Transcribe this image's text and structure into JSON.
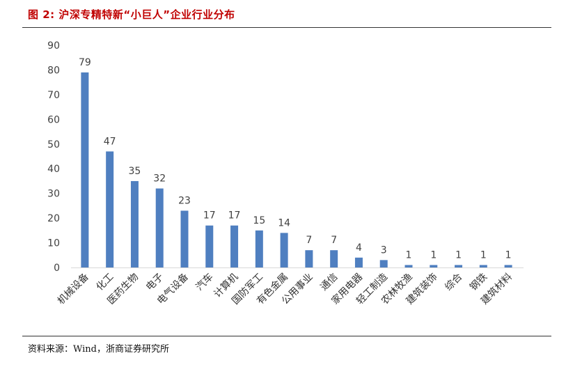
{
  "title": "图 2: 沪深专精特新“小巨人”企业行业分布",
  "source": "资料来源：Wind，浙商证券研究所",
  "colors": {
    "bar": "#4f7fc0",
    "title": "#c00000",
    "axis": "#d9d9d9",
    "text": "#404040"
  },
  "chart_data": {
    "type": "bar",
    "title": "",
    "xlabel": "",
    "ylabel": "",
    "ylim": [
      0,
      90
    ],
    "yticks": [
      0,
      10,
      20,
      30,
      40,
      50,
      60,
      70,
      80,
      90
    ],
    "grid": false,
    "categories": [
      "机械设备",
      "化工",
      "医药生物",
      "电子",
      "电气设备",
      "汽车",
      "计算机",
      "国防军工",
      "有色金属",
      "公用事业",
      "通信",
      "家用电器",
      "轻工制造",
      "农林牧渔",
      "建筑装饰",
      "综合",
      "钢铁",
      "建筑材料"
    ],
    "values": [
      79,
      47,
      35,
      32,
      23,
      17,
      17,
      15,
      14,
      7,
      7,
      4,
      3,
      1,
      1,
      1,
      1,
      1
    ]
  }
}
